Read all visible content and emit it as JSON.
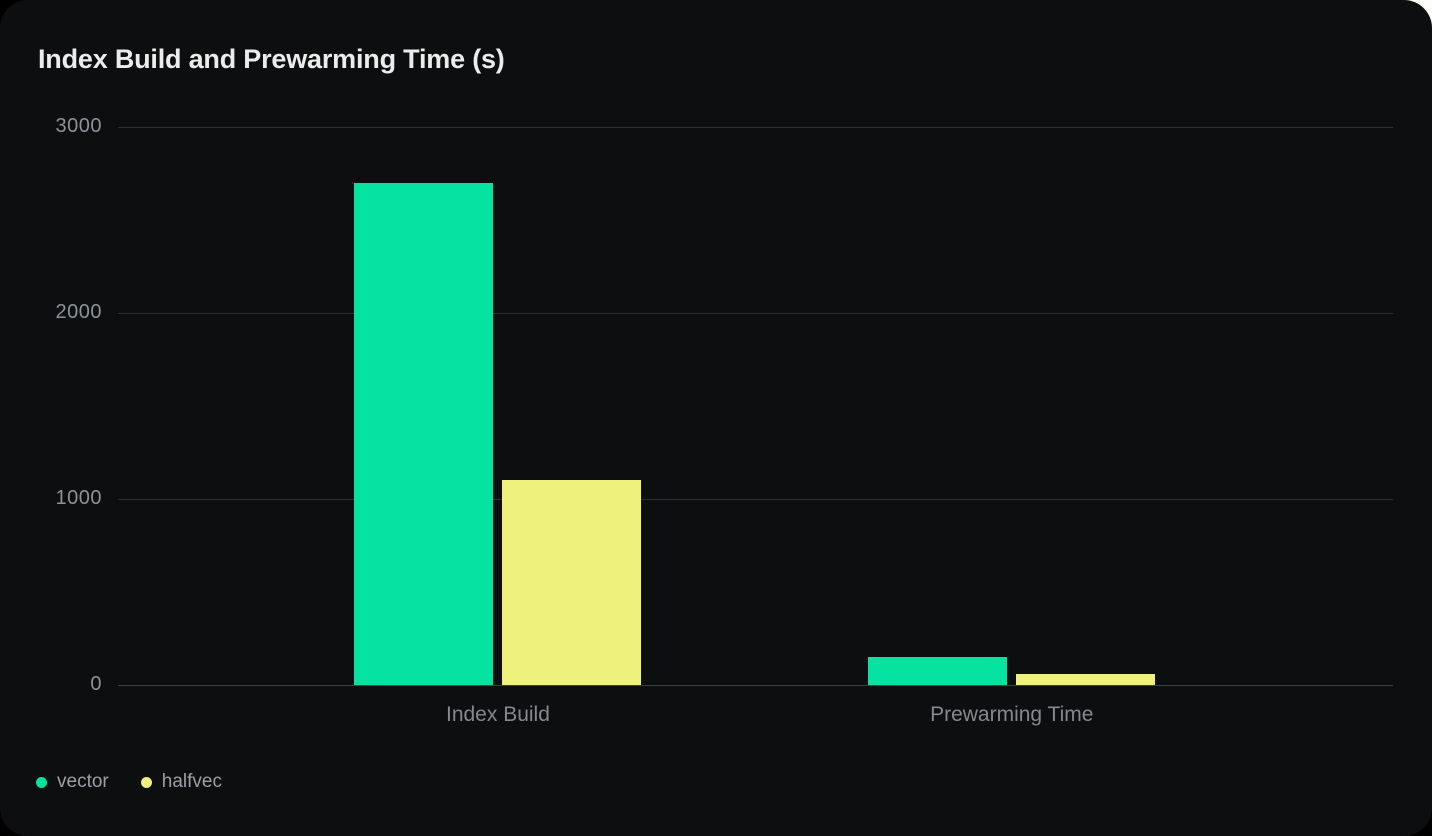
{
  "card": {
    "title": "Index Build and Prewarming Time (s)"
  },
  "chart_data": {
    "type": "bar",
    "title": "Index Build and Prewarming Time (s)",
    "categories": [
      "Index Build",
      "Prewarming Time"
    ],
    "series": [
      {
        "name": "vector",
        "color": "#06e2a0",
        "values": [
          2700,
          150
        ]
      },
      {
        "name": "halfvec",
        "color": "#eef17b",
        "values": [
          1100,
          60
        ]
      }
    ],
    "ylim": [
      0,
      3000
    ],
    "yticks": [
      3000,
      2000,
      1000,
      0
    ],
    "xlabel": "",
    "ylabel": "",
    "grid": true,
    "legend_position": "bottom-left",
    "background": "#0d0e0f",
    "gridline_color": "#2b2d30",
    "text_color": "#8e9399",
    "title_color": "#ececed"
  }
}
